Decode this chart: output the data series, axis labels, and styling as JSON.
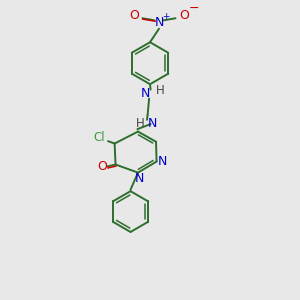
{
  "bg_color": "#e8e8e8",
  "bond_color": "#2d6e2d",
  "n_color": "#0000cc",
  "o_color": "#cc0000",
  "cl_color": "#3a9a3a",
  "h_color": "#444444",
  "figsize": [
    3.0,
    3.0
  ],
  "dpi": 100,
  "xlim": [
    0,
    10
  ],
  "ylim": [
    0,
    10
  ]
}
